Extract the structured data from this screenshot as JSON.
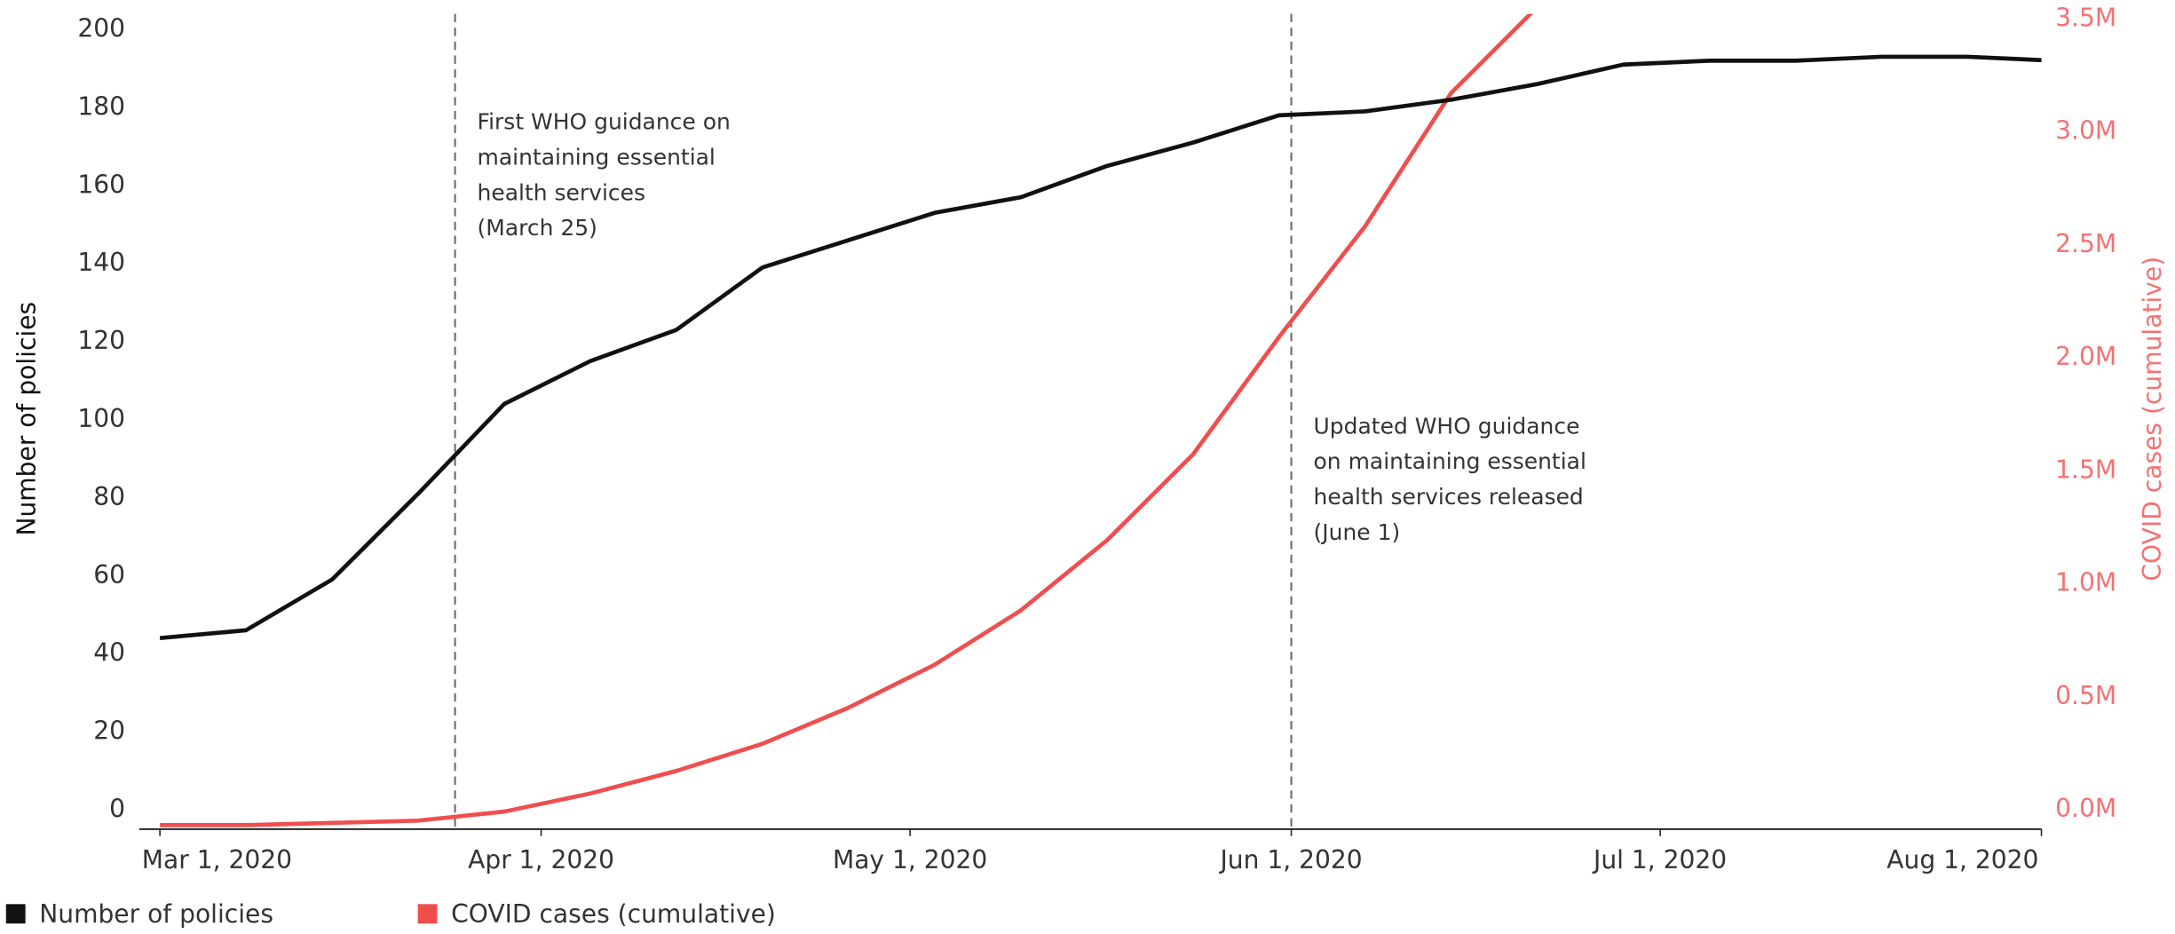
{
  "chart_data": {
    "type": "line",
    "y_label": "Number of policies",
    "y2_label": "COVID cases (cumulative)",
    "x": [
      "2020-03-01",
      "2020-03-08",
      "2020-03-15",
      "2020-03-22",
      "2020-03-29",
      "2020-04-05",
      "2020-04-12",
      "2020-04-19",
      "2020-04-26",
      "2020-05-03",
      "2020-05-10",
      "2020-05-17",
      "2020-05-24",
      "2020-05-31",
      "2020-06-07",
      "2020-06-14",
      "2020-06-21",
      "2020-06-28",
      "2020-07-05",
      "2020-07-12",
      "2020-07-19",
      "2020-07-26",
      "2020-08-02"
    ],
    "series": [
      {
        "name": "Number of policies",
        "color": "#111111",
        "axis": "y",
        "values": [
          48,
          50,
          63,
          85,
          108,
          119,
          127,
          143,
          150,
          157,
          161,
          169,
          175,
          182,
          183,
          186,
          190,
          195,
          196,
          196,
          197,
          197,
          196
        ]
      },
      {
        "name": "COVID cases (cumulative)",
        "color": "#f04e4e",
        "axis": "y2",
        "values": [
          0,
          0,
          10000,
          20000,
          60000,
          140000,
          240000,
          360000,
          520000,
          710000,
          950000,
          1260000,
          1640000,
          2160000,
          2650000,
          3240000,
          3620000,
          null,
          null,
          null,
          null,
          null,
          null
        ]
      }
    ],
    "xlim": [
      "2020-03-01",
      "2020-08-01"
    ],
    "xticks": [
      {
        "value": "2020-03-01",
        "label": "Mar 1, 2020"
      },
      {
        "value": "2020-04-01",
        "label": "Apr 1, 2020"
      },
      {
        "value": "2020-05-01",
        "label": "May 1, 2020"
      },
      {
        "value": "2020-06-01",
        "label": "Jun 1, 2020"
      },
      {
        "value": "2020-07-01",
        "label": "Jul 1, 2020"
      },
      {
        "value": "2020-08-01",
        "label": "Aug 1, 2020"
      }
    ],
    "ylim": [
      -1,
      208
    ],
    "yticks": [
      0,
      20,
      40,
      60,
      80,
      100,
      120,
      140,
      160,
      180,
      200
    ],
    "y2lim": [
      -18000,
      3590000
    ],
    "y2ticks": [
      {
        "value": 0,
        "label": "0.0M"
      },
      {
        "value": 500000,
        "label": "0.5M"
      },
      {
        "value": 1000000,
        "label": "1.0M"
      },
      {
        "value": 1500000,
        "label": "1.5M"
      },
      {
        "value": 2000000,
        "label": "2.0M"
      },
      {
        "value": 2500000,
        "label": "2.5M"
      },
      {
        "value": 3000000,
        "label": "3.0M"
      },
      {
        "value": 3500000,
        "label": "3.5M"
      }
    ],
    "y2_color": "#f47272",
    "annotations": [
      {
        "x": "2020-03-25",
        "lines": [
          "First WHO guidance on",
          "maintaining essential",
          "health services",
          "(March 25)"
        ],
        "y": 180
      },
      {
        "x": "2020-06-01",
        "lines": [
          "Updated WHO guidance",
          "on maintaining essential",
          "health services released",
          "(June 1)"
        ],
        "y": 102
      }
    ]
  }
}
